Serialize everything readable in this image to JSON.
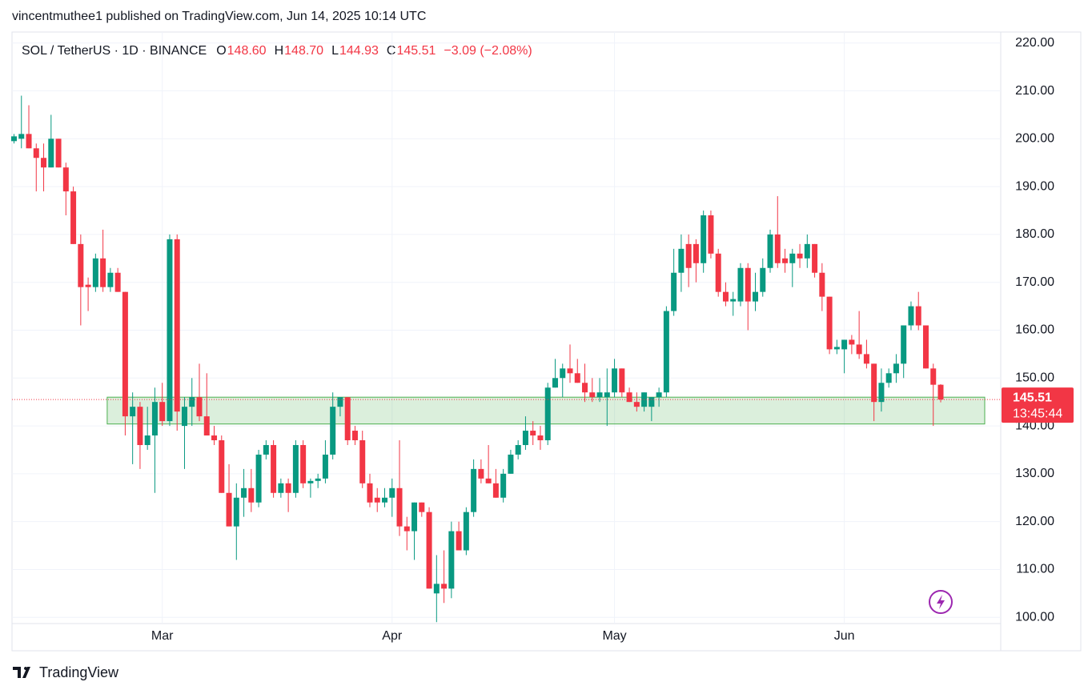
{
  "header": {
    "title": "vincentmuthee1 published on TradingView.com, Jun 14, 2025 10:14 UTC",
    "brand": "TradingView"
  },
  "chart_data": {
    "type": "candlestick",
    "legend": {
      "symbol": "SOL / TetherUS · 1D · BINANCE",
      "o_label": "O",
      "o": "148.60",
      "h_label": "H",
      "h": "148.70",
      "l_label": "L",
      "l": "144.93",
      "c_label": "C",
      "c": "145.51",
      "change": "−3.09 (−2.08%)"
    },
    "categories": [
      null,
      null,
      null,
      null,
      null,
      null,
      null,
      null,
      null,
      null,
      null,
      null,
      null,
      null,
      null,
      null,
      null,
      null,
      null,
      null,
      "Mar",
      null,
      null,
      null,
      null,
      null,
      null,
      null,
      null,
      null,
      null,
      null,
      null,
      null,
      null,
      null,
      null,
      null,
      null,
      null,
      null,
      null,
      null,
      null,
      null,
      null,
      null,
      null,
      null,
      null,
      null,
      "Apr",
      null,
      null,
      null,
      null,
      null,
      null,
      null,
      null,
      null,
      null,
      null,
      null,
      null,
      null,
      null,
      null,
      null,
      null,
      null,
      null,
      null,
      null,
      null,
      null,
      null,
      null,
      null,
      null,
      null,
      "May",
      null,
      null,
      null,
      null,
      null,
      null,
      null,
      null,
      null,
      null,
      null,
      null,
      null,
      null,
      null,
      null,
      null,
      null,
      null,
      null,
      null,
      null,
      null,
      null,
      null,
      null,
      null,
      null,
      null,
      null,
      "Jun",
      null,
      null,
      null,
      null,
      null,
      null,
      null,
      null,
      null,
      null,
      null,
      null,
      null
    ],
    "open": [
      199.5,
      200,
      201,
      198,
      196,
      194,
      200,
      194,
      189,
      178,
      169.5,
      169,
      175,
      169,
      172,
      168,
      142,
      144,
      136,
      138,
      145,
      141,
      179,
      140,
      144,
      146,
      142,
      138,
      137,
      126,
      119,
      125,
      127,
      124,
      134,
      136,
      126,
      128,
      126,
      136,
      128,
      128.5,
      129,
      134,
      144,
      146,
      139,
      137,
      128,
      125,
      124,
      125,
      127,
      119,
      118,
      124,
      122,
      105,
      107,
      106,
      118,
      114,
      122,
      131,
      129,
      128,
      125,
      130,
      134,
      136,
      139,
      138,
      137,
      148,
      150,
      152,
      151,
      149,
      147,
      146,
      146,
      147,
      152,
      147,
      145,
      144,
      144,
      146,
      147,
      164,
      172,
      178,
      178,
      174,
      184,
      176,
      168,
      166,
      166,
      173,
      166,
      168,
      173,
      180,
      175,
      174,
      176,
      175,
      178,
      172,
      167,
      156,
      156,
      158,
      157,
      155,
      153,
      145,
      149,
      151,
      153,
      161,
      165,
      161,
      152,
      148.6
    ],
    "high": [
      201,
      209,
      207,
      199,
      199,
      205,
      200,
      195,
      190,
      180,
      171,
      176,
      181,
      173,
      173,
      168,
      147,
      145,
      144,
      148,
      149,
      180,
      180,
      146,
      150,
      153,
      151,
      140,
      138,
      132,
      128,
      131,
      131,
      135,
      137,
      137,
      129,
      129,
      137,
      137,
      129,
      130,
      137,
      147,
      146,
      146,
      140,
      139,
      130,
      127,
      127,
      129,
      137,
      121,
      124,
      124,
      123,
      113,
      114,
      120,
      120,
      123,
      133,
      133,
      136,
      131,
      131,
      135,
      137,
      142,
      141,
      140,
      149,
      154,
      153,
      157,
      154,
      153,
      150,
      150,
      152,
      154,
      152,
      148,
      147,
      147,
      146,
      148,
      165,
      177,
      180,
      180,
      179,
      185,
      185,
      177,
      170,
      168,
      174,
      174,
      172,
      175,
      181,
      188,
      177,
      177,
      178,
      180,
      178,
      174,
      167,
      158,
      158,
      159,
      164,
      158,
      153,
      152,
      152,
      155,
      161,
      166,
      168,
      161,
      153,
      148.7
    ],
    "low": [
      199,
      198,
      198,
      189,
      189,
      194,
      194,
      184,
      178,
      161,
      164,
      168,
      168,
      168,
      168,
      138,
      132,
      131,
      135,
      126,
      140,
      140,
      139,
      131,
      140,
      141,
      138,
      136,
      126,
      119,
      112,
      121,
      122,
      123,
      133,
      125,
      125,
      122,
      125,
      127,
      125,
      127,
      128,
      133,
      142,
      136,
      136,
      127,
      123,
      122,
      123,
      121,
      117,
      114,
      112,
      121,
      106,
      99,
      103,
      104,
      114,
      113,
      121,
      128,
      128,
      125,
      124,
      130,
      133,
      135,
      136,
      135,
      136,
      148,
      146,
      149,
      149,
      145,
      145,
      145,
      140,
      146,
      146,
      145,
      143,
      143,
      141,
      144,
      146,
      163,
      168,
      169,
      170,
      172,
      175,
      167,
      165,
      163,
      165,
      160,
      164,
      167,
      172,
      173,
      172,
      169,
      173,
      173,
      171,
      164,
      155,
      155,
      151,
      155,
      154,
      152,
      141,
      143,
      148,
      149,
      150,
      160,
      160,
      152,
      140,
      144.93
    ],
    "close": [
      200.5,
      201,
      198,
      196,
      194,
      200,
      194,
      189,
      178,
      169,
      169,
      175,
      169,
      172,
      168,
      142,
      144,
      136,
      138,
      145,
      141,
      179,
      143,
      144,
      146,
      142,
      138,
      137,
      126,
      119,
      125,
      127,
      124,
      134,
      136,
      126,
      128,
      126,
      136,
      128,
      128.5,
      129,
      134,
      144,
      146,
      137,
      137,
      128,
      124,
      124,
      125,
      127,
      119,
      118,
      124,
      122,
      106,
      107,
      106,
      118,
      114,
      122,
      131,
      129,
      128,
      125,
      130,
      134,
      136,
      139,
      138,
      137,
      148,
      150,
      152,
      151,
      149,
      147,
      146,
      147,
      147,
      152,
      147,
      145,
      144,
      147,
      146,
      147,
      164,
      172,
      177,
      173,
      174,
      184,
      176,
      168,
      166,
      166.5,
      173,
      166,
      168,
      173,
      180,
      174,
      174,
      176,
      175,
      178,
      172,
      167,
      156,
      156.5,
      158,
      157,
      155,
      153,
      145,
      149,
      151,
      153,
      161,
      165,
      161,
      152,
      148.6,
      145.51
    ],
    "up_color": "#089981",
    "down_color": "#f23645",
    "ylim": [
      98.7,
      222.3
    ],
    "yticks": [
      {
        "value": 100,
        "label": "100.00"
      },
      {
        "value": 110,
        "label": "110.00"
      },
      {
        "value": 120,
        "label": "120.00"
      },
      {
        "value": 130,
        "label": "130.00"
      },
      {
        "value": 140,
        "label": "140.00"
      },
      {
        "value": 150,
        "label": "150.00"
      },
      {
        "value": 160,
        "label": "160.00"
      },
      {
        "value": 170,
        "label": "170.00"
      },
      {
        "value": 180,
        "label": "180.00"
      },
      {
        "value": 190,
        "label": "190.00"
      },
      {
        "value": 200,
        "label": "200.00"
      },
      {
        "value": 210,
        "label": "210.00"
      },
      {
        "value": 220,
        "label": "220.00"
      }
    ],
    "grid": true,
    "zone": {
      "low": 140.4,
      "high": 146.0,
      "color": "#4caf50"
    },
    "last_price": {
      "value": 145.51,
      "label": "145.51",
      "countdown": "13:45:44"
    }
  }
}
